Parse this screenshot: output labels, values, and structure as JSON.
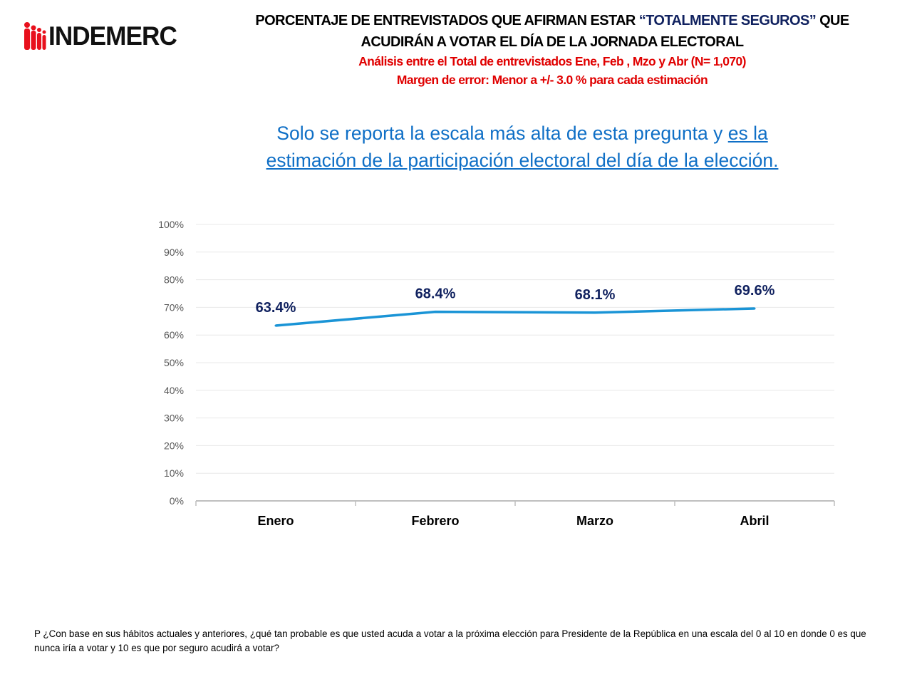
{
  "logo": {
    "text": "INDEMERC",
    "accent": "#e8101c"
  },
  "header": {
    "title_part1": "PORCENTAJE DE ENTREVISTADOS QUE AFIRMAN ESTAR ",
    "title_highlight": "“TOTALMENTE SEGUROS”",
    "title_part2": " QUE",
    "title_line2": "ACUDIRÁN A VOTAR EL DÍA DE LA JORNADA ELECTORAL",
    "analysis": "Análisis entre el Total de entrevistados Ene, Feb , Mzo y Abr  (N= 1,070)",
    "margin": "Margen de error: Menor a +/- 3.0 % para cada estimación"
  },
  "subtitle": {
    "plain": "Solo se reporta la escala más alta de esta pregunta y ",
    "underlined": "es la estimación de la participación electoral del día de la elección."
  },
  "chart_data": {
    "type": "line",
    "categories": [
      "Enero",
      "Febrero",
      "Marzo",
      "Abril"
    ],
    "series": [
      {
        "name": "Totalmente seguros",
        "values": [
          63.4,
          68.4,
          68.1,
          69.6
        ],
        "labels": [
          "63.4%",
          "68.4%",
          "68.1%",
          "69.6%"
        ],
        "color": "#1a94d6"
      }
    ],
    "ylim": [
      0,
      100
    ],
    "yticks": [
      "0%",
      "10%",
      "20%",
      "30%",
      "40%",
      "50%",
      "60%",
      "70%",
      "80%",
      "90%",
      "100%"
    ],
    "grid": true,
    "legend": "none"
  },
  "footnote": "P  ¿Con base en sus hábitos actuales y anteriores, ¿qué tan probable es que usted acuda a votar a la próxima elección para Presidente de la República en una escala del 0 al 10 en donde 0 es que nunca iría a votar y 10 es que por seguro acudirá a votar?"
}
